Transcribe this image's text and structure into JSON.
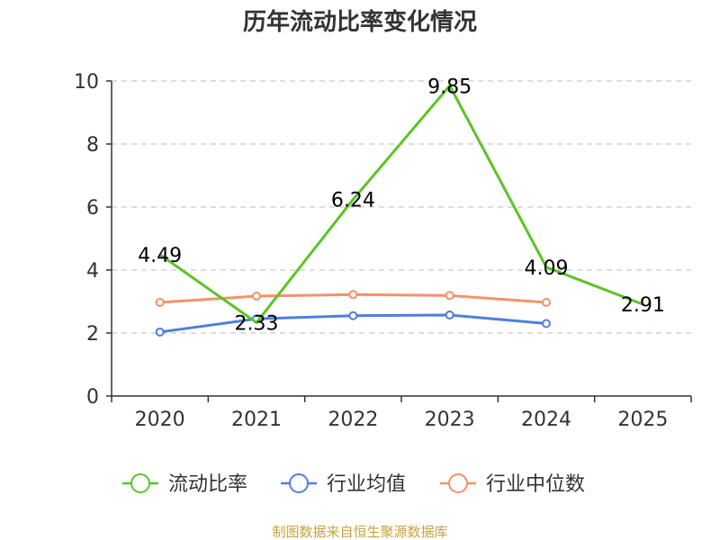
{
  "chart_data": {
    "type": "line",
    "title": "历年流动比率变化情况",
    "categories": [
      "2020",
      "2021",
      "2022",
      "2023",
      "2024",
      "2025"
    ],
    "ylim": [
      0,
      10
    ],
    "yticks": [
      0,
      2,
      4,
      6,
      8,
      10
    ],
    "grid": true,
    "legend_position": "bottom",
    "series": [
      {
        "name": "流动比率",
        "color": "#5cc426",
        "values": [
          4.49,
          2.33,
          6.24,
          9.85,
          4.09,
          2.91
        ],
        "labels": [
          "4.49",
          "2.33",
          "6.24",
          "9.85",
          "4.09",
          "2.91"
        ],
        "markers": false
      },
      {
        "name": "行业均值",
        "color": "#4f7fdc",
        "values": [
          2.03,
          2.45,
          2.55,
          2.57,
          2.3,
          null
        ],
        "markers": true
      },
      {
        "name": "行业中位数",
        "color": "#f59266",
        "values": [
          2.97,
          3.17,
          3.22,
          3.19,
          2.97,
          null
        ],
        "markers": true
      }
    ]
  },
  "footer": {
    "source": "制图数据来自恒生聚源数据库"
  }
}
